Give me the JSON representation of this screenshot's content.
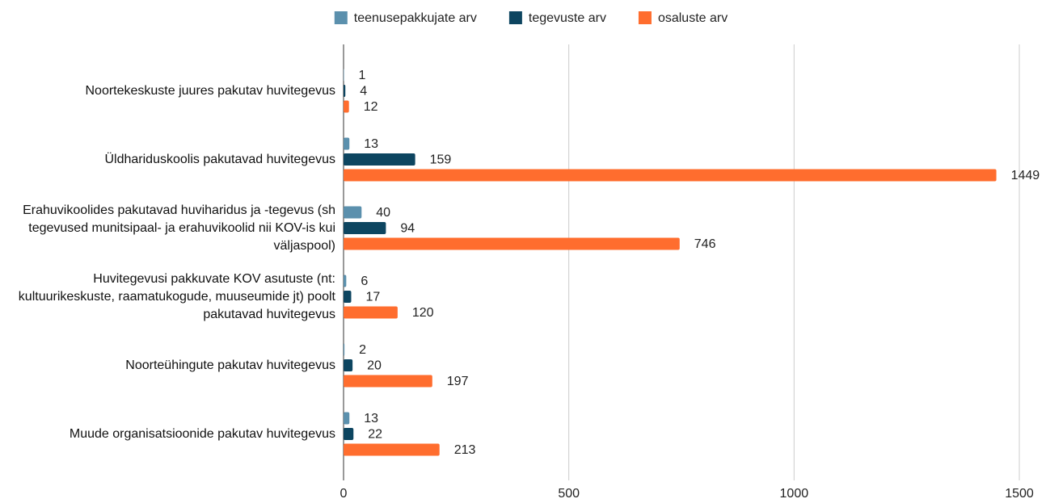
{
  "chart_data": {
    "type": "bar",
    "orientation": "horizontal",
    "categories": [
      "Noortekeskuste juures pakutav huvitegevus",
      "Üldhariduskoolis pakutavad huvitegevus",
      "Erahuvikoolides pakutavad huviharidus ja -tegevus (sh tegevused munitsipaal- ja erahuvikoolid nii KOV-is kui väljaspool)",
      "Huvitegevusi pakkuvate KOV asutuste (nt: kultuurikeskuste, raamatukogude, muuseumide jt) poolt pakutavad huvitegevus",
      "Noorteühingute pakutav huvitegevus",
      "Muude organisatsioonide pakutav huvitegevus"
    ],
    "series": [
      {
        "name": "teenusepakkujate arv",
        "color": "#5b90ad",
        "values": [
          1,
          13,
          40,
          6,
          2,
          13
        ]
      },
      {
        "name": "tegevuste arv",
        "color": "#0d4560",
        "values": [
          4,
          159,
          94,
          17,
          20,
          22
        ]
      },
      {
        "name": "osaluste arv",
        "color": "#ff6d2e",
        "values": [
          12,
          1449,
          746,
          120,
          197,
          213
        ]
      }
    ],
    "xlim": [
      0,
      1500
    ],
    "xticks": [
      0,
      500,
      1000,
      1500
    ],
    "grid": true,
    "legend": "top"
  }
}
